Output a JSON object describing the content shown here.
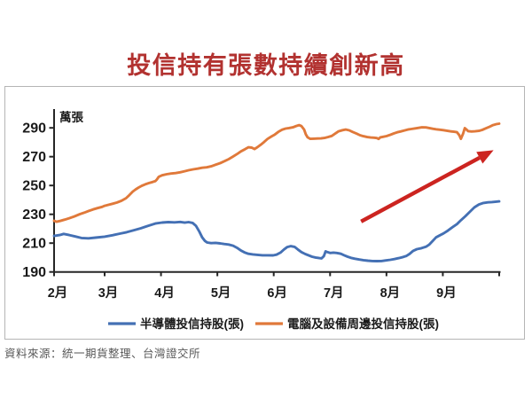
{
  "title": "投信持有張數持續創新高",
  "title_color": "#b23230",
  "source_note": "資料來源：統一期貨整理、台灣證交所",
  "chart_data": {
    "type": "line",
    "unit_label": "萬張",
    "x_tick_labels": [
      "2月",
      "3月",
      "4月",
      "5月",
      "6月",
      "7月",
      "8月",
      "9月"
    ],
    "y_ticks": [
      190,
      210,
      230,
      250,
      270,
      290
    ],
    "ylim": [
      190,
      300
    ],
    "grid": false,
    "legend_position": "bottom",
    "axis_color": "#262626",
    "series": [
      {
        "name": "半導體投信持股(張)",
        "color": "#4470b4",
        "points": [
          [
            2.0,
            215
          ],
          [
            2.11,
            215.6
          ],
          [
            2.19,
            216.4
          ],
          [
            2.3,
            215.6
          ],
          [
            2.42,
            214.6
          ],
          [
            2.54,
            213.6
          ],
          [
            2.68,
            213.3
          ],
          [
            2.82,
            213.8
          ],
          [
            3.0,
            214.5
          ],
          [
            3.14,
            215.5
          ],
          [
            3.27,
            216.6
          ],
          [
            3.39,
            217.6
          ],
          [
            3.52,
            219
          ],
          [
            3.64,
            220.3
          ],
          [
            3.77,
            222
          ],
          [
            3.9,
            223.6
          ],
          [
            4.02,
            224.3
          ],
          [
            4.13,
            224.6
          ],
          [
            4.24,
            224.4
          ],
          [
            4.34,
            224.7
          ],
          [
            4.42,
            224.2
          ],
          [
            4.49,
            224.6
          ],
          [
            4.56,
            224
          ],
          [
            4.62,
            222
          ],
          [
            4.68,
            218
          ],
          [
            4.73,
            214
          ],
          [
            4.78,
            211.5
          ],
          [
            4.82,
            210.4
          ],
          [
            4.89,
            210
          ],
          [
            4.97,
            210.2
          ],
          [
            5.05,
            209.8
          ],
          [
            5.12,
            209.4
          ],
          [
            5.2,
            209
          ],
          [
            5.28,
            208.2
          ],
          [
            5.36,
            206.5
          ],
          [
            5.42,
            204.8
          ],
          [
            5.49,
            203.4
          ],
          [
            5.55,
            202.6
          ],
          [
            5.63,
            202.2
          ],
          [
            5.71,
            201.9
          ],
          [
            5.8,
            201.6
          ],
          [
            5.89,
            201.6
          ],
          [
            5.99,
            201.5
          ],
          [
            6.05,
            202
          ],
          [
            6.12,
            203.4
          ],
          [
            6.18,
            205.6
          ],
          [
            6.24,
            207.3
          ],
          [
            6.3,
            207.9
          ],
          [
            6.37,
            207.4
          ],
          [
            6.43,
            205.6
          ],
          [
            6.49,
            203.8
          ],
          [
            6.56,
            202.4
          ],
          [
            6.62,
            201.5
          ],
          [
            6.68,
            200.6
          ],
          [
            6.74,
            200
          ],
          [
            6.81,
            199.6
          ],
          [
            6.85,
            199.4
          ],
          [
            6.89,
            201
          ],
          [
            6.92,
            204.3
          ],
          [
            6.95,
            203.8
          ],
          [
            7.0,
            203.2
          ],
          [
            7.06,
            203.4
          ],
          [
            7.12,
            203.2
          ],
          [
            7.19,
            202.6
          ],
          [
            7.25,
            201.6
          ],
          [
            7.31,
            200.6
          ],
          [
            7.37,
            199.8
          ],
          [
            7.44,
            199.2
          ],
          [
            7.52,
            198.6
          ],
          [
            7.59,
            198.2
          ],
          [
            7.67,
            197.8
          ],
          [
            7.75,
            197.6
          ],
          [
            7.83,
            197.5
          ],
          [
            7.91,
            197.6
          ],
          [
            7.99,
            198
          ],
          [
            8.07,
            198.4
          ],
          [
            8.14,
            198.9
          ],
          [
            8.22,
            199.6
          ],
          [
            8.3,
            200.4
          ],
          [
            8.35,
            201
          ],
          [
            8.41,
            202.5
          ],
          [
            8.47,
            204.5
          ],
          [
            8.54,
            205.8
          ],
          [
            8.62,
            206.5
          ],
          [
            8.7,
            207.5
          ],
          [
            8.76,
            209
          ],
          [
            8.82,
            211.5
          ],
          [
            8.88,
            214
          ],
          [
            8.95,
            215.5
          ],
          [
            9.01,
            216.7
          ],
          [
            9.09,
            218.7
          ],
          [
            9.17,
            221
          ],
          [
            9.25,
            223.2
          ],
          [
            9.32,
            225.9
          ],
          [
            9.4,
            228.7
          ],
          [
            9.48,
            231.7
          ],
          [
            9.56,
            234.8
          ],
          [
            9.64,
            236.8
          ],
          [
            9.72,
            237.9
          ],
          [
            9.8,
            238.3
          ],
          [
            9.87,
            238.5
          ],
          [
            9.95,
            238.8
          ],
          [
            10.0,
            239
          ]
        ]
      },
      {
        "name": "電腦及設備周邊投信持股(張)",
        "color": "#e0793a",
        "points": [
          [
            2.0,
            225.5
          ],
          [
            2.05,
            224.8
          ],
          [
            2.12,
            225.4
          ],
          [
            2.21,
            226.3
          ],
          [
            2.3,
            227.3
          ],
          [
            2.4,
            228.5
          ],
          [
            2.51,
            230.1
          ],
          [
            2.6,
            231.2
          ],
          [
            2.68,
            232.3
          ],
          [
            2.77,
            233.4
          ],
          [
            2.86,
            234.3
          ],
          [
            2.95,
            235.2
          ],
          [
            3.0,
            235.9
          ],
          [
            3.06,
            236.5
          ],
          [
            3.14,
            237.3
          ],
          [
            3.22,
            238.2
          ],
          [
            3.3,
            239.4
          ],
          [
            3.38,
            241.2
          ],
          [
            3.44,
            243.4
          ],
          [
            3.5,
            245.8
          ],
          [
            3.55,
            247.3
          ],
          [
            3.6,
            248.5
          ],
          [
            3.66,
            249.8
          ],
          [
            3.72,
            250.8
          ],
          [
            3.79,
            251.7
          ],
          [
            3.85,
            252.4
          ],
          [
            3.9,
            253.1
          ],
          [
            3.93,
            254.3
          ],
          [
            3.96,
            256
          ],
          [
            4.02,
            257.1
          ],
          [
            4.1,
            257.8
          ],
          [
            4.18,
            258.3
          ],
          [
            4.26,
            258.6
          ],
          [
            4.34,
            259.2
          ],
          [
            4.42,
            259.9
          ],
          [
            4.49,
            260.6
          ],
          [
            4.57,
            261.2
          ],
          [
            4.65,
            261.7
          ],
          [
            4.73,
            262.3
          ],
          [
            4.81,
            262.6
          ],
          [
            4.89,
            263.3
          ],
          [
            4.97,
            264.4
          ],
          [
            5.05,
            265.5
          ],
          [
            5.12,
            266.8
          ],
          [
            5.2,
            268.3
          ],
          [
            5.28,
            270.1
          ],
          [
            5.36,
            272.1
          ],
          [
            5.42,
            273.7
          ],
          [
            5.49,
            275.2
          ],
          [
            5.55,
            276.5
          ],
          [
            5.61,
            276.3
          ],
          [
            5.66,
            275.3
          ],
          [
            5.71,
            276.6
          ],
          [
            5.77,
            278.3
          ],
          [
            5.83,
            280.2
          ],
          [
            5.89,
            282.3
          ],
          [
            5.96,
            284
          ],
          [
            6.02,
            285.4
          ],
          [
            6.08,
            287.2
          ],
          [
            6.15,
            288.7
          ],
          [
            6.21,
            289.5
          ],
          [
            6.27,
            289.9
          ],
          [
            6.34,
            290.4
          ],
          [
            6.4,
            291.3
          ],
          [
            6.45,
            291.9
          ],
          [
            6.49,
            291.3
          ],
          [
            6.54,
            288.8
          ],
          [
            6.57,
            285.5
          ],
          [
            6.6,
            283.4
          ],
          [
            6.65,
            282.4
          ],
          [
            6.71,
            282.5
          ],
          [
            6.78,
            282.6
          ],
          [
            6.84,
            282.7
          ],
          [
            6.9,
            283
          ],
          [
            6.96,
            283.6
          ],
          [
            7.03,
            284.4
          ],
          [
            7.09,
            286
          ],
          [
            7.15,
            287.6
          ],
          [
            7.22,
            288.4
          ],
          [
            7.28,
            288.8
          ],
          [
            7.34,
            288.3
          ],
          [
            7.4,
            287.2
          ],
          [
            7.47,
            286
          ],
          [
            7.53,
            284.9
          ],
          [
            7.59,
            284.2
          ],
          [
            7.66,
            283.6
          ],
          [
            7.72,
            283.3
          ],
          [
            7.78,
            283.2
          ],
          [
            7.83,
            282.9
          ],
          [
            7.86,
            282.3
          ],
          [
            7.89,
            283.4
          ],
          [
            7.94,
            283.8
          ],
          [
            8.0,
            284.3
          ],
          [
            8.07,
            285.2
          ],
          [
            8.13,
            286.1
          ],
          [
            8.19,
            286.9
          ],
          [
            8.25,
            287.5
          ],
          [
            8.32,
            288.2
          ],
          [
            8.38,
            288.8
          ],
          [
            8.44,
            289.2
          ],
          [
            8.51,
            289.6
          ],
          [
            8.57,
            290
          ],
          [
            8.63,
            290.4
          ],
          [
            8.7,
            290.3
          ],
          [
            8.76,
            289.9
          ],
          [
            8.82,
            289.4
          ],
          [
            8.88,
            289
          ],
          [
            8.95,
            288.7
          ],
          [
            9.01,
            288.4
          ],
          [
            9.07,
            288
          ],
          [
            9.13,
            287.6
          ],
          [
            9.2,
            287.3
          ],
          [
            9.25,
            287
          ],
          [
            9.29,
            285
          ],
          [
            9.32,
            282.4
          ],
          [
            9.36,
            286
          ],
          [
            9.39,
            289.8
          ],
          [
            9.42,
            288.8
          ],
          [
            9.45,
            287.7
          ],
          [
            9.51,
            287.5
          ],
          [
            9.57,
            287.6
          ],
          [
            9.64,
            287.9
          ],
          [
            9.7,
            288.6
          ],
          [
            9.76,
            289.6
          ],
          [
            9.83,
            290.8
          ],
          [
            9.89,
            291.9
          ],
          [
            9.95,
            292.6
          ],
          [
            10.0,
            292.9
          ]
        ]
      }
    ],
    "annotation_arrow": {
      "color": "#cc2420",
      "from": [
        7.55,
        225
      ],
      "to": [
        9.9,
        274.5
      ]
    }
  }
}
